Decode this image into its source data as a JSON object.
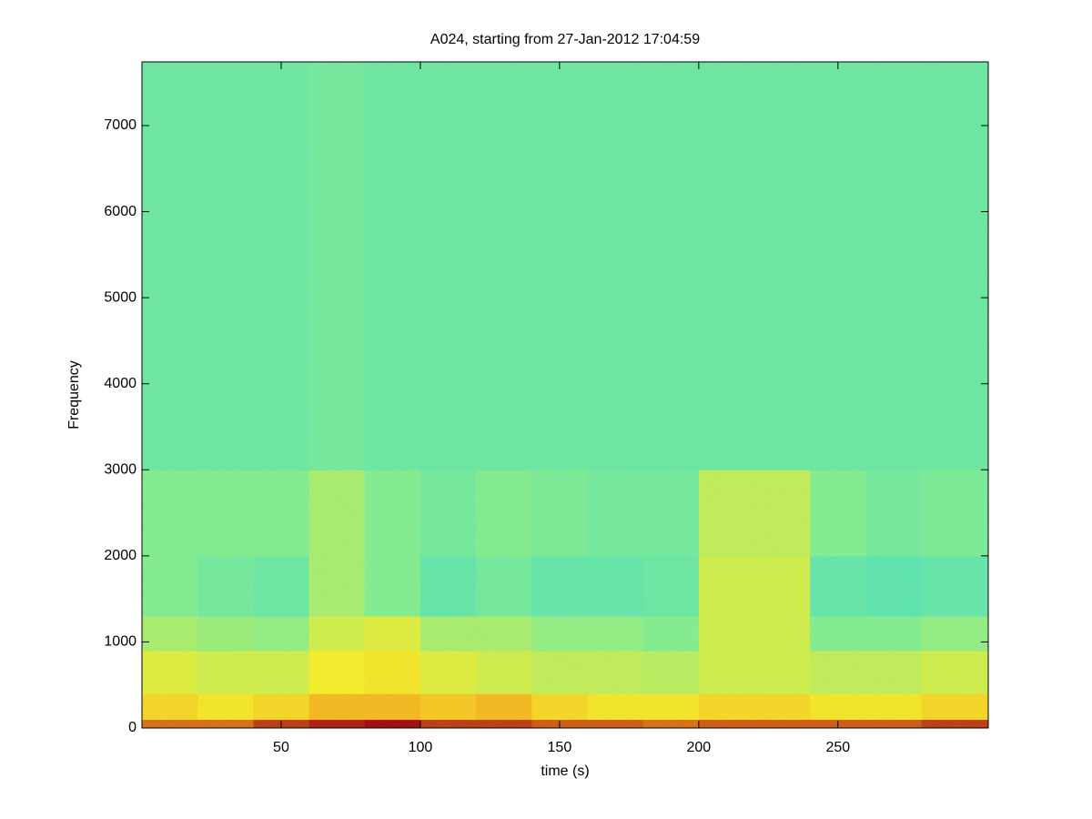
{
  "chart_data": {
    "type": "spectrogram",
    "title": "A024, starting from 27-Jan-2012 17:04:59",
    "x_label": "time (s)",
    "y_label": "Frequency",
    "xlim": [
      0,
      304
    ],
    "ylim": [
      0,
      7740
    ],
    "xticks": [
      50,
      100,
      150,
      200,
      250
    ],
    "yticks": [
      0,
      1000,
      2000,
      3000,
      4000,
      5000,
      6000,
      7000
    ],
    "x_edges": [
      0,
      20,
      40,
      60,
      80,
      100,
      120,
      140,
      160,
      180,
      200,
      220,
      240,
      260,
      280,
      304
    ],
    "y_edges": [
      0,
      100,
      400,
      900,
      1300,
      2000,
      3000,
      7740
    ],
    "values": [
      [
        0.8,
        0.8,
        0.85,
        0.88,
        0.9,
        0.85,
        0.85,
        0.82,
        0.82,
        0.8,
        0.82,
        0.82,
        0.82,
        0.82,
        0.85
      ],
      [
        0.68,
        0.66,
        0.68,
        0.72,
        0.72,
        0.7,
        0.72,
        0.68,
        0.66,
        0.66,
        0.68,
        0.68,
        0.66,
        0.66,
        0.68
      ],
      [
        0.62,
        0.6,
        0.6,
        0.65,
        0.66,
        0.62,
        0.6,
        0.58,
        0.58,
        0.57,
        0.6,
        0.6,
        0.58,
        0.58,
        0.6
      ],
      [
        0.55,
        0.53,
        0.52,
        0.6,
        0.62,
        0.55,
        0.55,
        0.52,
        0.52,
        0.5,
        0.6,
        0.6,
        0.5,
        0.5,
        0.52
      ],
      [
        0.5,
        0.48,
        0.47,
        0.55,
        0.5,
        0.46,
        0.48,
        0.46,
        0.46,
        0.47,
        0.6,
        0.6,
        0.46,
        0.45,
        0.46
      ],
      [
        0.5,
        0.5,
        0.5,
        0.55,
        0.5,
        0.48,
        0.5,
        0.49,
        0.48,
        0.48,
        0.58,
        0.58,
        0.5,
        0.48,
        0.49
      ],
      [
        0.47,
        0.47,
        0.47,
        0.48,
        0.47,
        0.47,
        0.47,
        0.47,
        0.47,
        0.47,
        0.47,
        0.47,
        0.47,
        0.47,
        0.47
      ]
    ],
    "clim": [
      0,
      1
    ],
    "colormap": [
      [
        0.4,
        "#30dcd0"
      ],
      [
        0.5,
        "#7ff08c"
      ],
      [
        0.65,
        "#f8f020"
      ],
      [
        0.75,
        "#f8a010"
      ],
      [
        0.9,
        "#a00000"
      ]
    ],
    "grid": false
  }
}
